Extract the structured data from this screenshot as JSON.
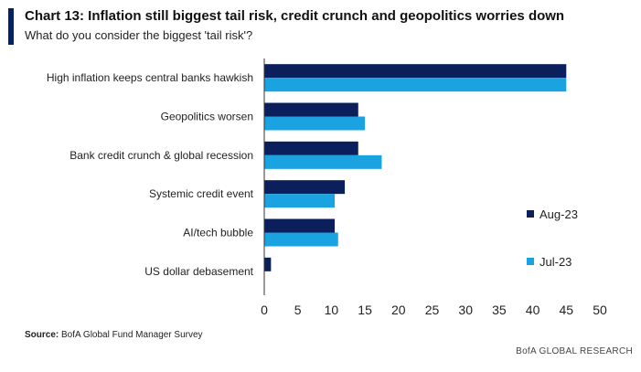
{
  "title": "Chart 13: Inflation still biggest tail risk, credit crunch and geopolitics worries down",
  "subtitle": "What do you consider the biggest 'tail risk'?",
  "source_label": "Source:",
  "source_text": "BofA Global Fund Manager Survey",
  "brand": "BofA GLOBAL RESEARCH",
  "colors": {
    "accent": "#012169",
    "aug": "#0b1f5c",
    "jul": "#1aa3e0"
  },
  "chart_data": {
    "type": "bar",
    "orientation": "horizontal",
    "categories": [
      "High inflation keeps central banks hawkish",
      "Geopolitics worsen",
      "Bank credit crunch & global recession",
      "Systemic credit event",
      "AI/tech bubble",
      "US dollar debasement"
    ],
    "series": [
      {
        "name": "Aug-23",
        "values": [
          45,
          14,
          14,
          12,
          10.5,
          1
        ]
      },
      {
        "name": "Jul-23",
        "values": [
          45,
          15,
          17.5,
          10.5,
          11,
          0
        ]
      }
    ],
    "xlim": [
      0,
      50
    ],
    "xticks": [
      0,
      5,
      10,
      15,
      20,
      25,
      30,
      35,
      40,
      45,
      50
    ],
    "legend_position": "right",
    "grid": false
  }
}
